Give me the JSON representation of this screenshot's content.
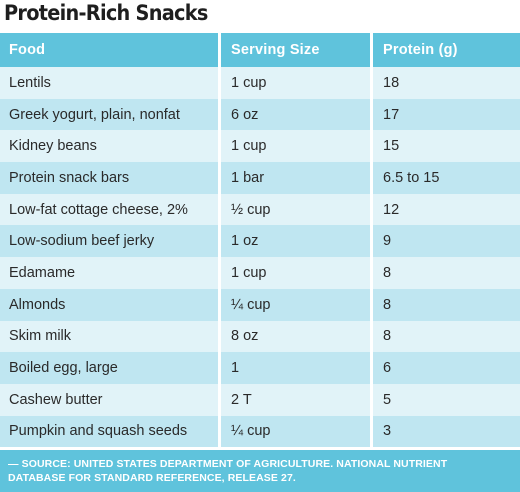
{
  "title": "Protein-Rich Snacks",
  "table": {
    "headers": [
      "Food",
      "Serving Size",
      "Protein (g)"
    ],
    "rows": [
      [
        "Lentils",
        "1 cup",
        "18"
      ],
      [
        "Greek yogurt, plain, nonfat",
        "6 oz",
        "17"
      ],
      [
        "Kidney beans",
        "1 cup",
        "15"
      ],
      [
        "Protein snack bars",
        "1 bar",
        "6.5 to 15"
      ],
      [
        "Low-fat cottage cheese, 2%",
        "½ cup",
        "12"
      ],
      [
        "Low-sodium beef jerky",
        "1 oz",
        "9"
      ],
      [
        "Edamame",
        "1 cup",
        "8"
      ],
      [
        "Almonds",
        "¼ cup",
        "8"
      ],
      [
        "Skim milk",
        "8 oz",
        "8"
      ],
      [
        "Boiled egg, large",
        "1",
        "6"
      ],
      [
        "Cashew butter",
        "2 T",
        "5"
      ],
      [
        "Pumpkin and squash seeds",
        "¼ cup",
        "3"
      ]
    ]
  },
  "footer": {
    "line1": "— SOURCE: UNITED STATES DEPARTMENT OF AGRICULTURE. NATIONAL NUTRIENT",
    "line2": "DATABASE FOR STANDARD REFERENCE, RELEASE 27."
  },
  "colors": {
    "header_bg": "#5fc3dc",
    "row_light": "#e1f3f8",
    "row_dark": "#bfe6f1"
  }
}
